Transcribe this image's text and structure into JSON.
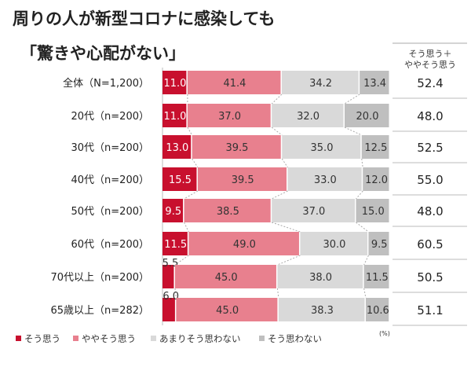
{
  "chart_data": {
    "type": "bar",
    "orientation": "horizontal",
    "stacked": true,
    "title": "周りの人が新型コロナに感染しても",
    "subtitle": "「驚きや心配がない」",
    "unit": "(%)",
    "xlim": [
      0,
      100
    ],
    "categories": [
      "全体（N=1,200）",
      "20代（n=200）",
      "30代（n=200）",
      "40代（n=200）",
      "50代（n=200）",
      "60代（n=200）",
      "70代以上（n=200）",
      "65歳以上（n=282）"
    ],
    "series": [
      {
        "name": "そう思う",
        "color": "#c8102e",
        "values": [
          11.0,
          11.0,
          13.0,
          15.5,
          9.5,
          11.5,
          5.5,
          6.0
        ]
      },
      {
        "name": "ややそう思う",
        "color": "#e8808e",
        "values": [
          41.4,
          37.0,
          39.5,
          39.5,
          38.5,
          49.0,
          45.0,
          45.0
        ]
      },
      {
        "name": "あまりそう思わない",
        "color": "#d9d9d9",
        "values": [
          34.2,
          32.0,
          35.0,
          33.0,
          37.0,
          30.0,
          38.0,
          38.3
        ]
      },
      {
        "name": "そう思わない",
        "color": "#bfbfbf",
        "values": [
          13.4,
          20.0,
          12.5,
          12.0,
          15.0,
          9.5,
          11.5,
          10.6
        ]
      }
    ],
    "summary_column": {
      "header": [
        "そう思う＋",
        "ややそう思う"
      ],
      "values": [
        "52.4",
        "48.0",
        "52.5",
        "55.0",
        "48.0",
        "60.5",
        "50.5",
        "51.1"
      ]
    },
    "legend_position": "bottom",
    "grid": false
  }
}
